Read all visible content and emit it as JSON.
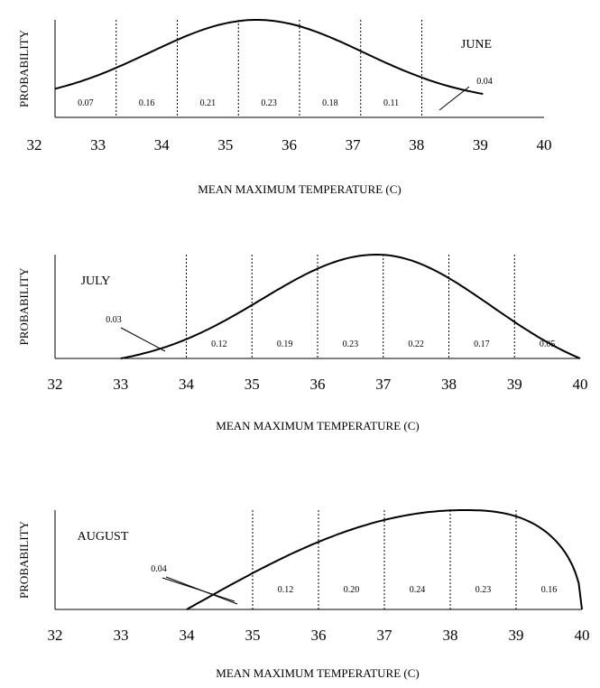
{
  "chart_data": [
    {
      "type": "area",
      "month": "JUNE",
      "ylabel": "PROBABILITY",
      "xlabel": "MEAN MAXIMUM TEMPERATURE (C)",
      "xlim": [
        32,
        40
      ],
      "x_ticks": [
        "32",
        "33",
        "34",
        "35",
        "36",
        "37",
        "38",
        "39",
        "40"
      ],
      "curve": {
        "start": 32.0,
        "peak": 35.3,
        "end": 39.0
      },
      "bins": [
        {
          "from": 32,
          "to": 33,
          "label": "0.07"
        },
        {
          "from": 33,
          "to": 34,
          "label": "0.16"
        },
        {
          "from": 34,
          "to": 35,
          "label": "0.21"
        },
        {
          "from": 35,
          "to": 36,
          "label": "0.23"
        },
        {
          "from": 36,
          "to": 37,
          "label": "0.18"
        },
        {
          "from": 37,
          "to": 38,
          "label": "0.11"
        },
        {
          "from": 38,
          "to": 39,
          "label": "0.04"
        }
      ]
    },
    {
      "type": "area",
      "month": "JULY",
      "ylabel": "PROBABILITY",
      "xlabel": "MEAN MAXIMUM TEMPERATURE (C)",
      "xlim": [
        32,
        40
      ],
      "x_ticks": [
        "32",
        "33",
        "34",
        "35",
        "36",
        "37",
        "38",
        "39",
        "40"
      ],
      "curve": {
        "start": 33.0,
        "peak": 36.9,
        "end": 40.0
      },
      "bins": [
        {
          "from": 33,
          "to": 34,
          "label": "0.03"
        },
        {
          "from": 34,
          "to": 35,
          "label": "0.12"
        },
        {
          "from": 35,
          "to": 36,
          "label": "0.19"
        },
        {
          "from": 36,
          "to": 37,
          "label": "0.23"
        },
        {
          "from": 37,
          "to": 38,
          "label": "0.22"
        },
        {
          "from": 38,
          "to": 39,
          "label": "0.17"
        },
        {
          "from": 39,
          "to": 40,
          "label": "0.05"
        }
      ]
    },
    {
      "type": "area",
      "month": "AUGUST",
      "ylabel": "PROBABILITY",
      "xlabel": "MEAN MAXIMUM TEMPERATURE  (C)",
      "xlim": [
        32,
        40
      ],
      "x_ticks": [
        "32",
        "33",
        "34",
        "35",
        "36",
        "37",
        "38",
        "39",
        "40"
      ],
      "curve": {
        "start": 34.0,
        "peak": 38.2,
        "end": 40.0
      },
      "bins": [
        {
          "from": 34,
          "to": 35,
          "label": "0.04"
        },
        {
          "from": 35,
          "to": 36,
          "label": "0.12"
        },
        {
          "from": 36,
          "to": 37,
          "label": "0.20"
        },
        {
          "from": 37,
          "to": 38,
          "label": "0.24"
        },
        {
          "from": 38,
          "to": 39,
          "label": "0.23"
        },
        {
          "from": 39,
          "to": 40,
          "label": "0.16"
        }
      ]
    }
  ]
}
